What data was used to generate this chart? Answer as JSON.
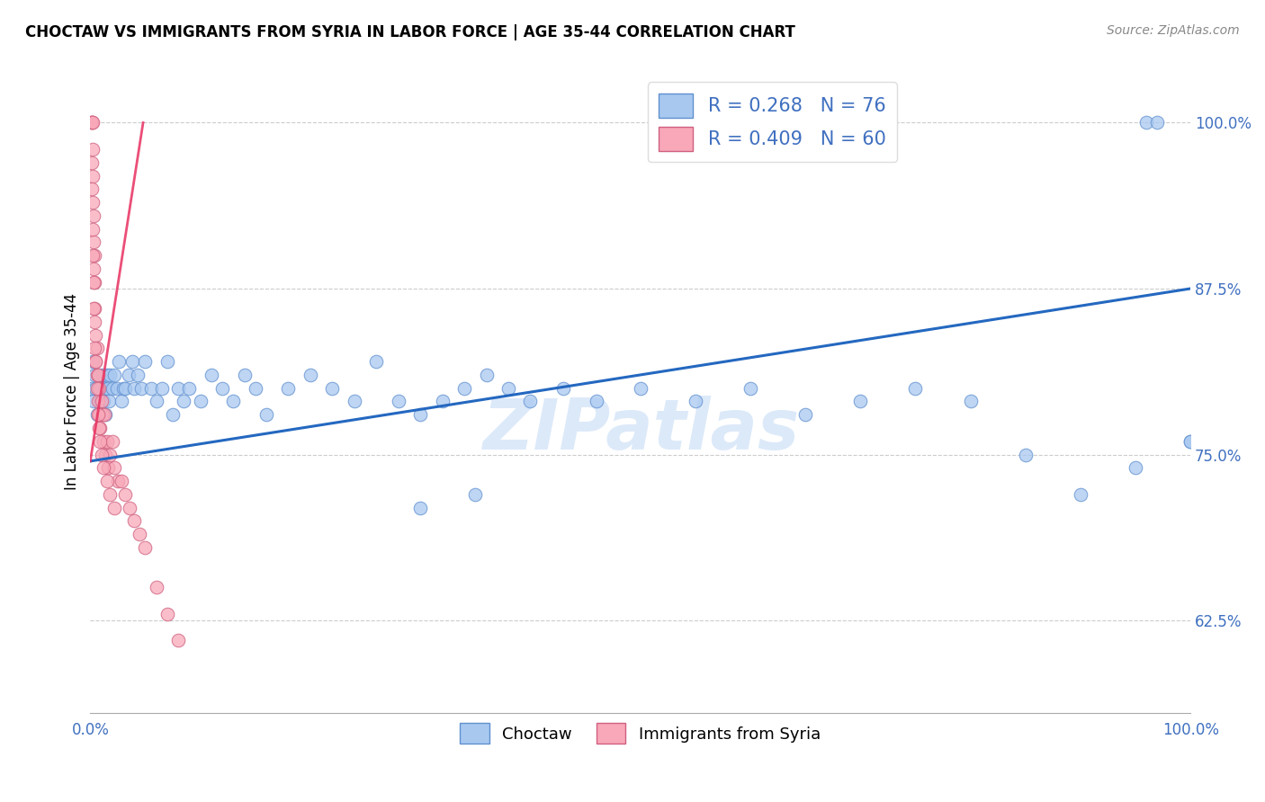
{
  "title": "CHOCTAW VS IMMIGRANTS FROM SYRIA IN LABOR FORCE | AGE 35-44 CORRELATION CHART",
  "source": "Source: ZipAtlas.com",
  "ylabel": "In Labor Force | Age 35-44",
  "xlim": [
    0.0,
    1.0
  ],
  "ylim": [
    0.555,
    1.04
  ],
  "yticks": [
    0.625,
    0.75,
    0.875,
    1.0
  ],
  "ytick_labels": [
    "62.5%",
    "75.0%",
    "87.5%",
    "100.0%"
  ],
  "xtick_labels": [
    "0.0%",
    "",
    "",
    "",
    "",
    "",
    "",
    "",
    "",
    "",
    "100.0%"
  ],
  "blue_color": "#A8C8F0",
  "pink_color": "#F8A8B8",
  "blue_edge_color": "#6090D0",
  "pink_edge_color": "#D06080",
  "blue_line_color": "#2468C0",
  "pink_line_color": "#E83060",
  "tick_label_color": "#4070C0",
  "legend_blue_R": "R = 0.268",
  "legend_blue_N": "N = 76",
  "legend_pink_R": "R = 0.409",
  "legend_pink_N": "N = 60",
  "watermark": "ZIPatlas",
  "blue_trend_x0": 0.0,
  "blue_trend_y0": 0.745,
  "blue_trend_x1": 1.0,
  "blue_trend_y1": 0.875,
  "pink_trend_x0": 0.0,
  "pink_trend_y0": 0.745,
  "pink_trend_x1": 0.048,
  "pink_trend_y1": 1.0,
  "choctaw_x": [
    0.001,
    0.002,
    0.003,
    0.004,
    0.005,
    0.006,
    0.007,
    0.008,
    0.009,
    0.01,
    0.011,
    0.012,
    0.013,
    0.014,
    0.015,
    0.016,
    0.017,
    0.018,
    0.02,
    0.022,
    0.024,
    0.026,
    0.028,
    0.03,
    0.032,
    0.035,
    0.038,
    0.04,
    0.043,
    0.046,
    0.05,
    0.055,
    0.06,
    0.065,
    0.07,
    0.075,
    0.08,
    0.085,
    0.09,
    0.1,
    0.11,
    0.12,
    0.13,
    0.14,
    0.15,
    0.16,
    0.18,
    0.2,
    0.22,
    0.24,
    0.26,
    0.28,
    0.3,
    0.32,
    0.34,
    0.36,
    0.38,
    0.4,
    0.43,
    0.46,
    0.5,
    0.55,
    0.6,
    0.65,
    0.7,
    0.75,
    0.8,
    0.85,
    0.9,
    0.95,
    0.96,
    0.97,
    1.0,
    1.0,
    0.3,
    0.35
  ],
  "choctaw_y": [
    0.8,
    0.82,
    0.79,
    0.81,
    0.8,
    0.78,
    0.8,
    0.81,
    0.79,
    0.8,
    0.81,
    0.79,
    0.8,
    0.78,
    0.81,
    0.8,
    0.79,
    0.81,
    0.8,
    0.81,
    0.8,
    0.82,
    0.79,
    0.8,
    0.8,
    0.81,
    0.82,
    0.8,
    0.81,
    0.8,
    0.82,
    0.8,
    0.79,
    0.8,
    0.82,
    0.78,
    0.8,
    0.79,
    0.8,
    0.79,
    0.81,
    0.8,
    0.79,
    0.81,
    0.8,
    0.78,
    0.8,
    0.81,
    0.8,
    0.79,
    0.82,
    0.79,
    0.78,
    0.79,
    0.8,
    0.81,
    0.8,
    0.79,
    0.8,
    0.79,
    0.8,
    0.79,
    0.8,
    0.78,
    0.79,
    0.8,
    0.79,
    0.75,
    0.72,
    0.74,
    1.0,
    1.0,
    0.76,
    0.76,
    0.71,
    0.72
  ],
  "syria_x": [
    0.001,
    0.001,
    0.001,
    0.002,
    0.002,
    0.002,
    0.002,
    0.003,
    0.003,
    0.003,
    0.004,
    0.004,
    0.004,
    0.005,
    0.005,
    0.006,
    0.006,
    0.007,
    0.007,
    0.008,
    0.008,
    0.009,
    0.01,
    0.011,
    0.012,
    0.013,
    0.014,
    0.015,
    0.016,
    0.018,
    0.02,
    0.022,
    0.025,
    0.028,
    0.032,
    0.036,
    0.04,
    0.045,
    0.05,
    0.06,
    0.07,
    0.08,
    0.001,
    0.001,
    0.002,
    0.002,
    0.003,
    0.003,
    0.004,
    0.004,
    0.005,
    0.006,
    0.007,
    0.008,
    0.009,
    0.01,
    0.012,
    0.015,
    0.018,
    0.022
  ],
  "syria_y": [
    1.0,
    1.0,
    1.0,
    1.0,
    0.98,
    0.96,
    0.94,
    0.93,
    0.91,
    0.89,
    0.9,
    0.88,
    0.86,
    0.84,
    0.82,
    0.83,
    0.81,
    0.81,
    0.79,
    0.8,
    0.78,
    0.77,
    0.79,
    0.78,
    0.76,
    0.78,
    0.75,
    0.76,
    0.74,
    0.75,
    0.76,
    0.74,
    0.73,
    0.73,
    0.72,
    0.71,
    0.7,
    0.69,
    0.68,
    0.65,
    0.63,
    0.61,
    0.97,
    0.95,
    0.92,
    0.9,
    0.88,
    0.86,
    0.85,
    0.83,
    0.82,
    0.8,
    0.78,
    0.77,
    0.76,
    0.75,
    0.74,
    0.73,
    0.72,
    0.71
  ]
}
